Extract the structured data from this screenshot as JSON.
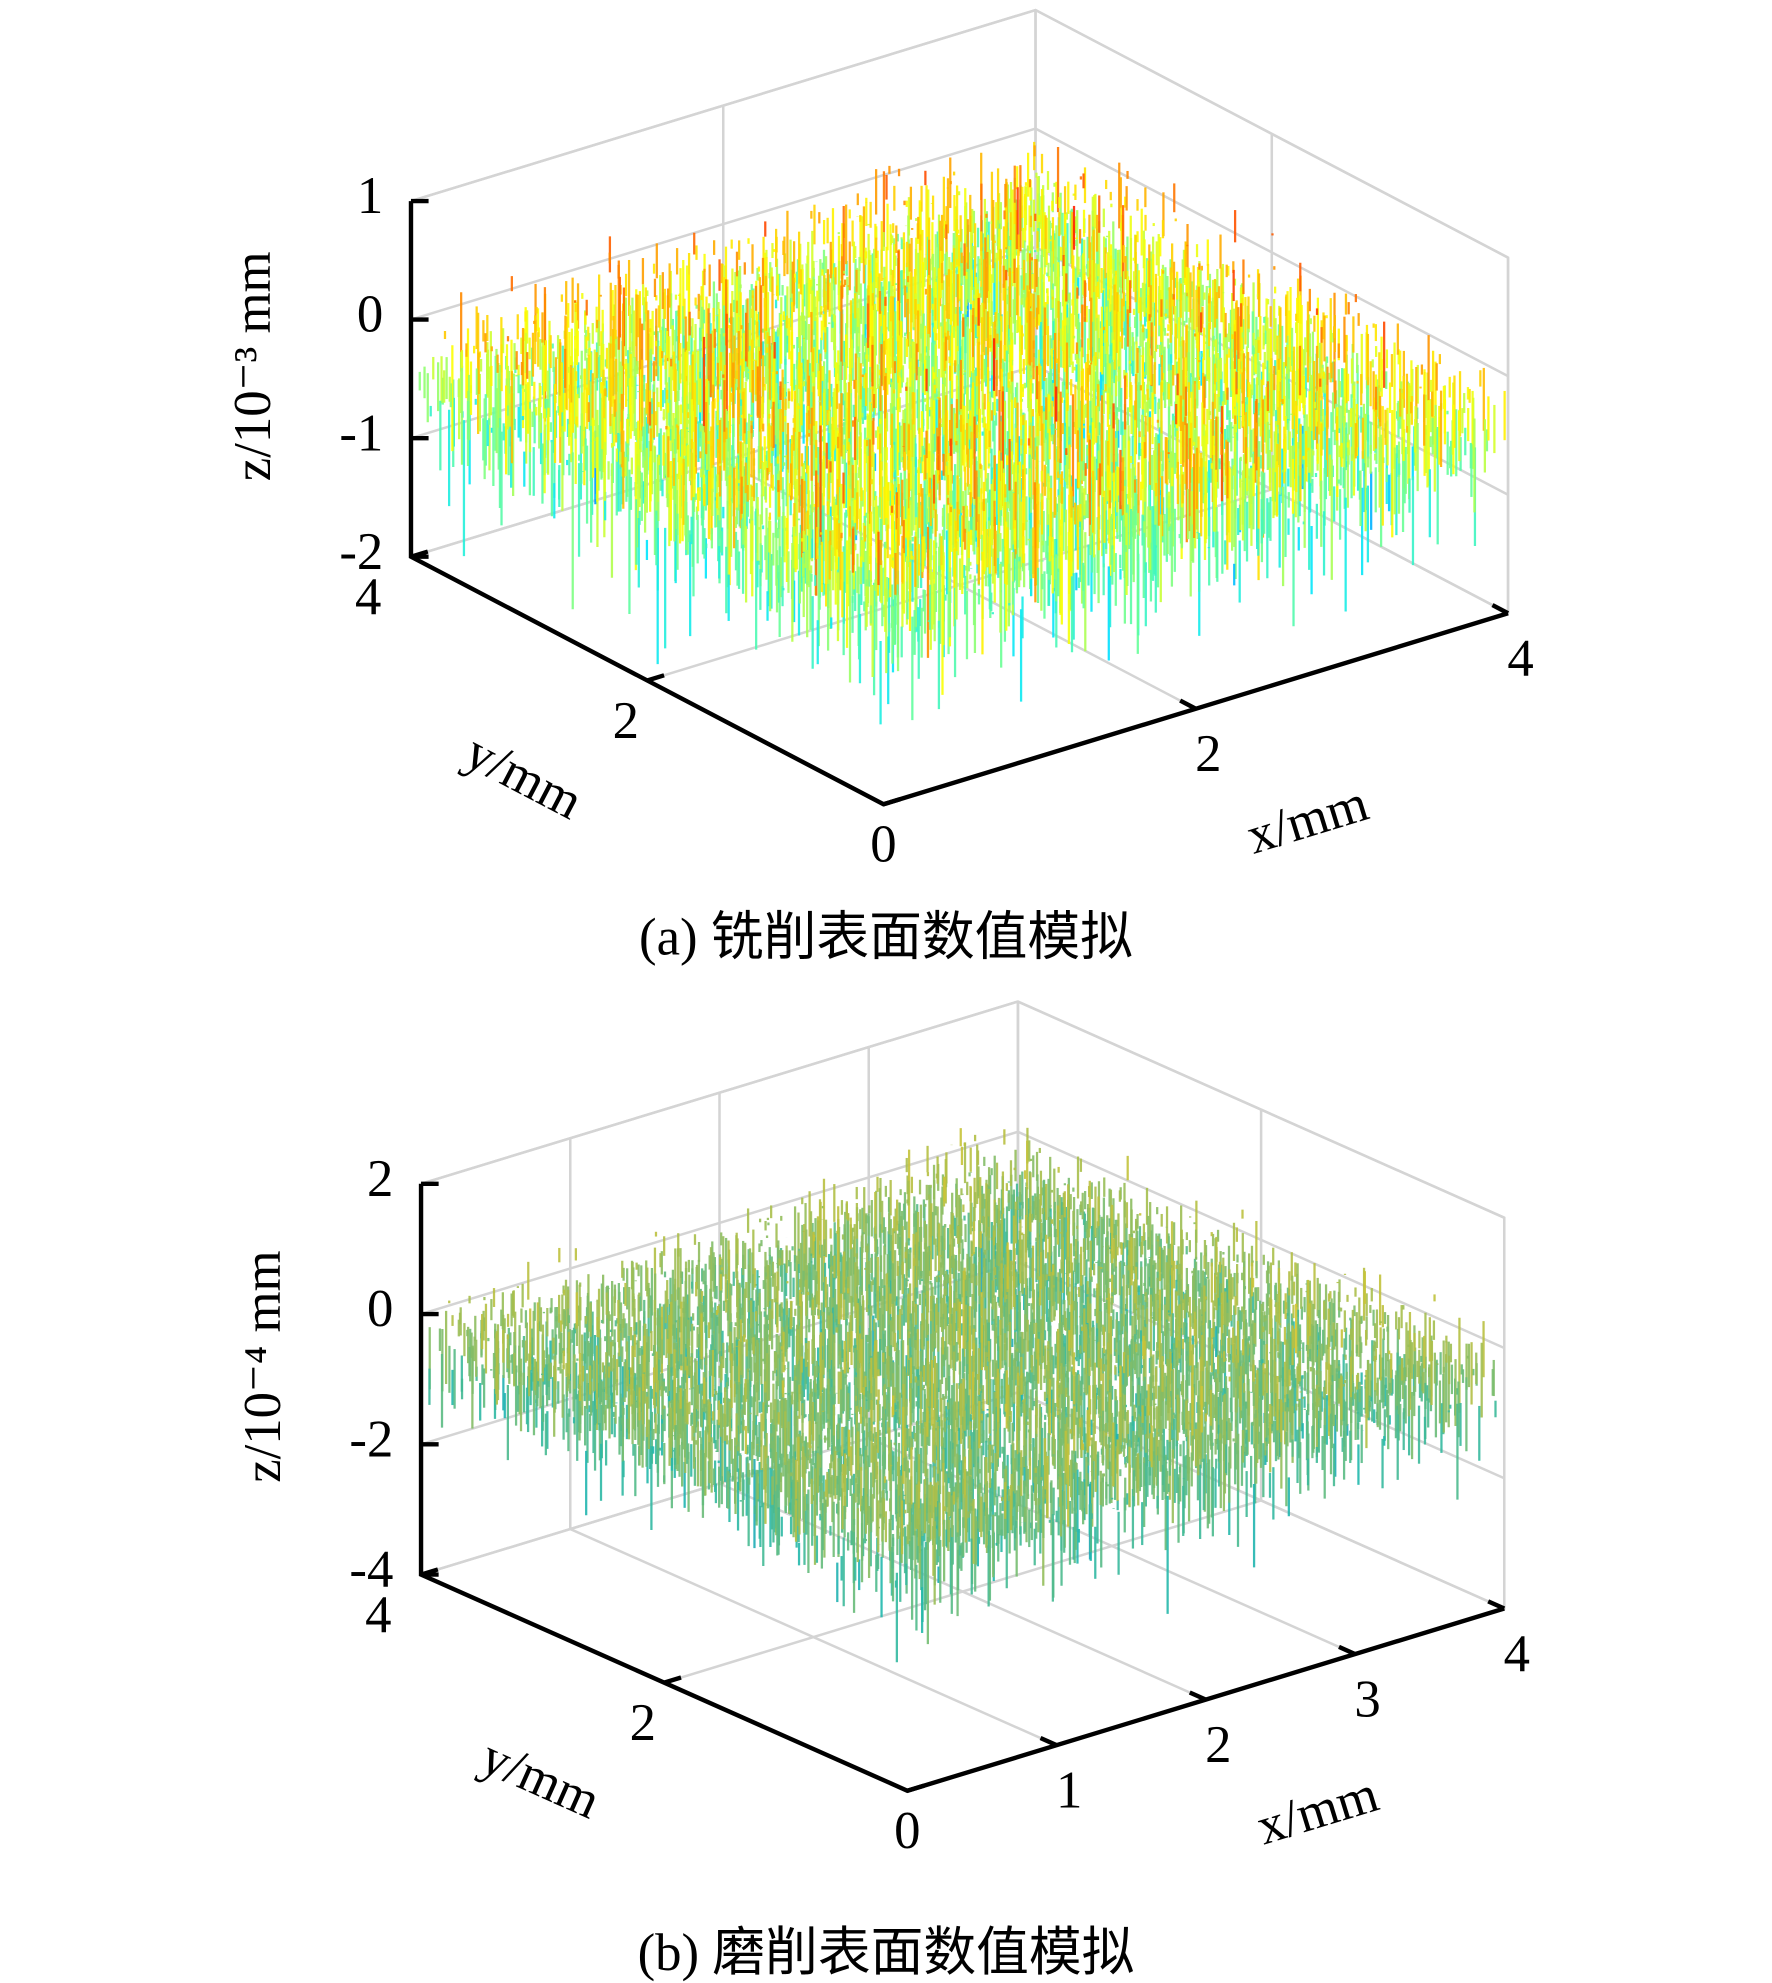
{
  "chart_data": [
    {
      "type": "surface",
      "colormap": "jet",
      "grid": true,
      "caption": "(a) 铣削表面数值模拟",
      "xlabel": "x/mm",
      "ylabel": "y/mm",
      "zlabel": "z/10⁻³ mm",
      "xlim": [
        0,
        4
      ],
      "ylim": [
        0,
        4
      ],
      "zlim": [
        -2,
        1
      ],
      "xticks": [
        2,
        4
      ],
      "yticks": [
        0,
        2,
        4
      ],
      "zticks": [
        -2,
        -1,
        0,
        1
      ]
    },
    {
      "type": "surface",
      "colormap": "parula",
      "grid": true,
      "caption": "(b) 磨削表面数值模拟",
      "xlabel": "x/mm",
      "ylabel": "y/mm",
      "zlabel": "z/10⁻⁴ mm",
      "xlim": [
        0,
        4
      ],
      "ylim": [
        0,
        4
      ],
      "zlim": [
        -4,
        2
      ],
      "xticks": [
        1,
        2,
        3,
        4
      ],
      "yticks": [
        0,
        2,
        4
      ],
      "zticks": [
        -4,
        -2,
        0,
        2
      ]
    }
  ]
}
